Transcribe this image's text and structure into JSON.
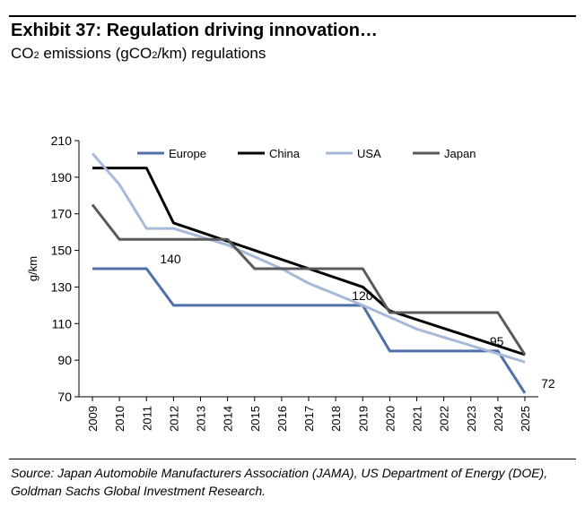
{
  "header": {
    "title": "Exhibit 37: Regulation driving innovation…",
    "subtitle_prefix": "CO",
    "subtitle_sub": "2",
    "subtitle_mid": " emissions (gCO",
    "subtitle_sub2": "2",
    "subtitle_suffix": "/km) regulations"
  },
  "footer": {
    "source": "Source: Japan Automobile Manufacturers Association (JAMA), US Department of Energy (DOE), Goldman Sachs Global Investment Research."
  },
  "chart_data": {
    "type": "line",
    "ylabel": "g/km",
    "ylim": [
      70,
      210
    ],
    "yticks": [
      70,
      90,
      110,
      130,
      150,
      170,
      190,
      210
    ],
    "xlim": [
      2009,
      2025
    ],
    "xticks": [
      "2009",
      "2010",
      "2011",
      "2012",
      "2013",
      "2014",
      "2015",
      "2016",
      "2017",
      "2018",
      "2019",
      "2020",
      "2021",
      "2022",
      "2023",
      "2024",
      "2025"
    ],
    "grid": false,
    "legend": "top",
    "series": [
      {
        "name": "Europe",
        "color": "#4f6fa8",
        "points": [
          [
            2009,
            140
          ],
          [
            2011,
            140
          ],
          [
            2012,
            120
          ],
          [
            2019,
            120
          ],
          [
            2020,
            95
          ],
          [
            2024,
            95
          ],
          [
            2025,
            72
          ]
        ]
      },
      {
        "name": "China",
        "color": "#000000",
        "points": [
          [
            2009,
            195
          ],
          [
            2011,
            195
          ],
          [
            2012,
            165
          ],
          [
            2019,
            130
          ],
          [
            2020,
            117
          ],
          [
            2025,
            93
          ]
        ]
      },
      {
        "name": "USA",
        "color": "#a6b9d9",
        "points": [
          [
            2009,
            203
          ],
          [
            2010,
            186
          ],
          [
            2011,
            162
          ],
          [
            2012,
            162
          ],
          [
            2014,
            153
          ],
          [
            2016,
            140
          ],
          [
            2017,
            132
          ],
          [
            2019,
            120
          ],
          [
            2021,
            107
          ],
          [
            2023,
            98
          ],
          [
            2025,
            89
          ]
        ]
      },
      {
        "name": "Japan",
        "color": "#595959",
        "points": [
          [
            2009,
            175
          ],
          [
            2010,
            156
          ],
          [
            2014,
            156
          ],
          [
            2015,
            140
          ],
          [
            2019,
            140
          ],
          [
            2020,
            116
          ],
          [
            2024,
            116
          ],
          [
            2025,
            93
          ]
        ]
      }
    ],
    "annotations": [
      {
        "text": "140",
        "x": 2011.5,
        "y": 140
      },
      {
        "text": "120",
        "x": 2018.6,
        "y": 120
      },
      {
        "text": "95",
        "x": 2023.7,
        "y": 95
      },
      {
        "text": "72",
        "x": 2025.6,
        "y": 72
      }
    ]
  }
}
